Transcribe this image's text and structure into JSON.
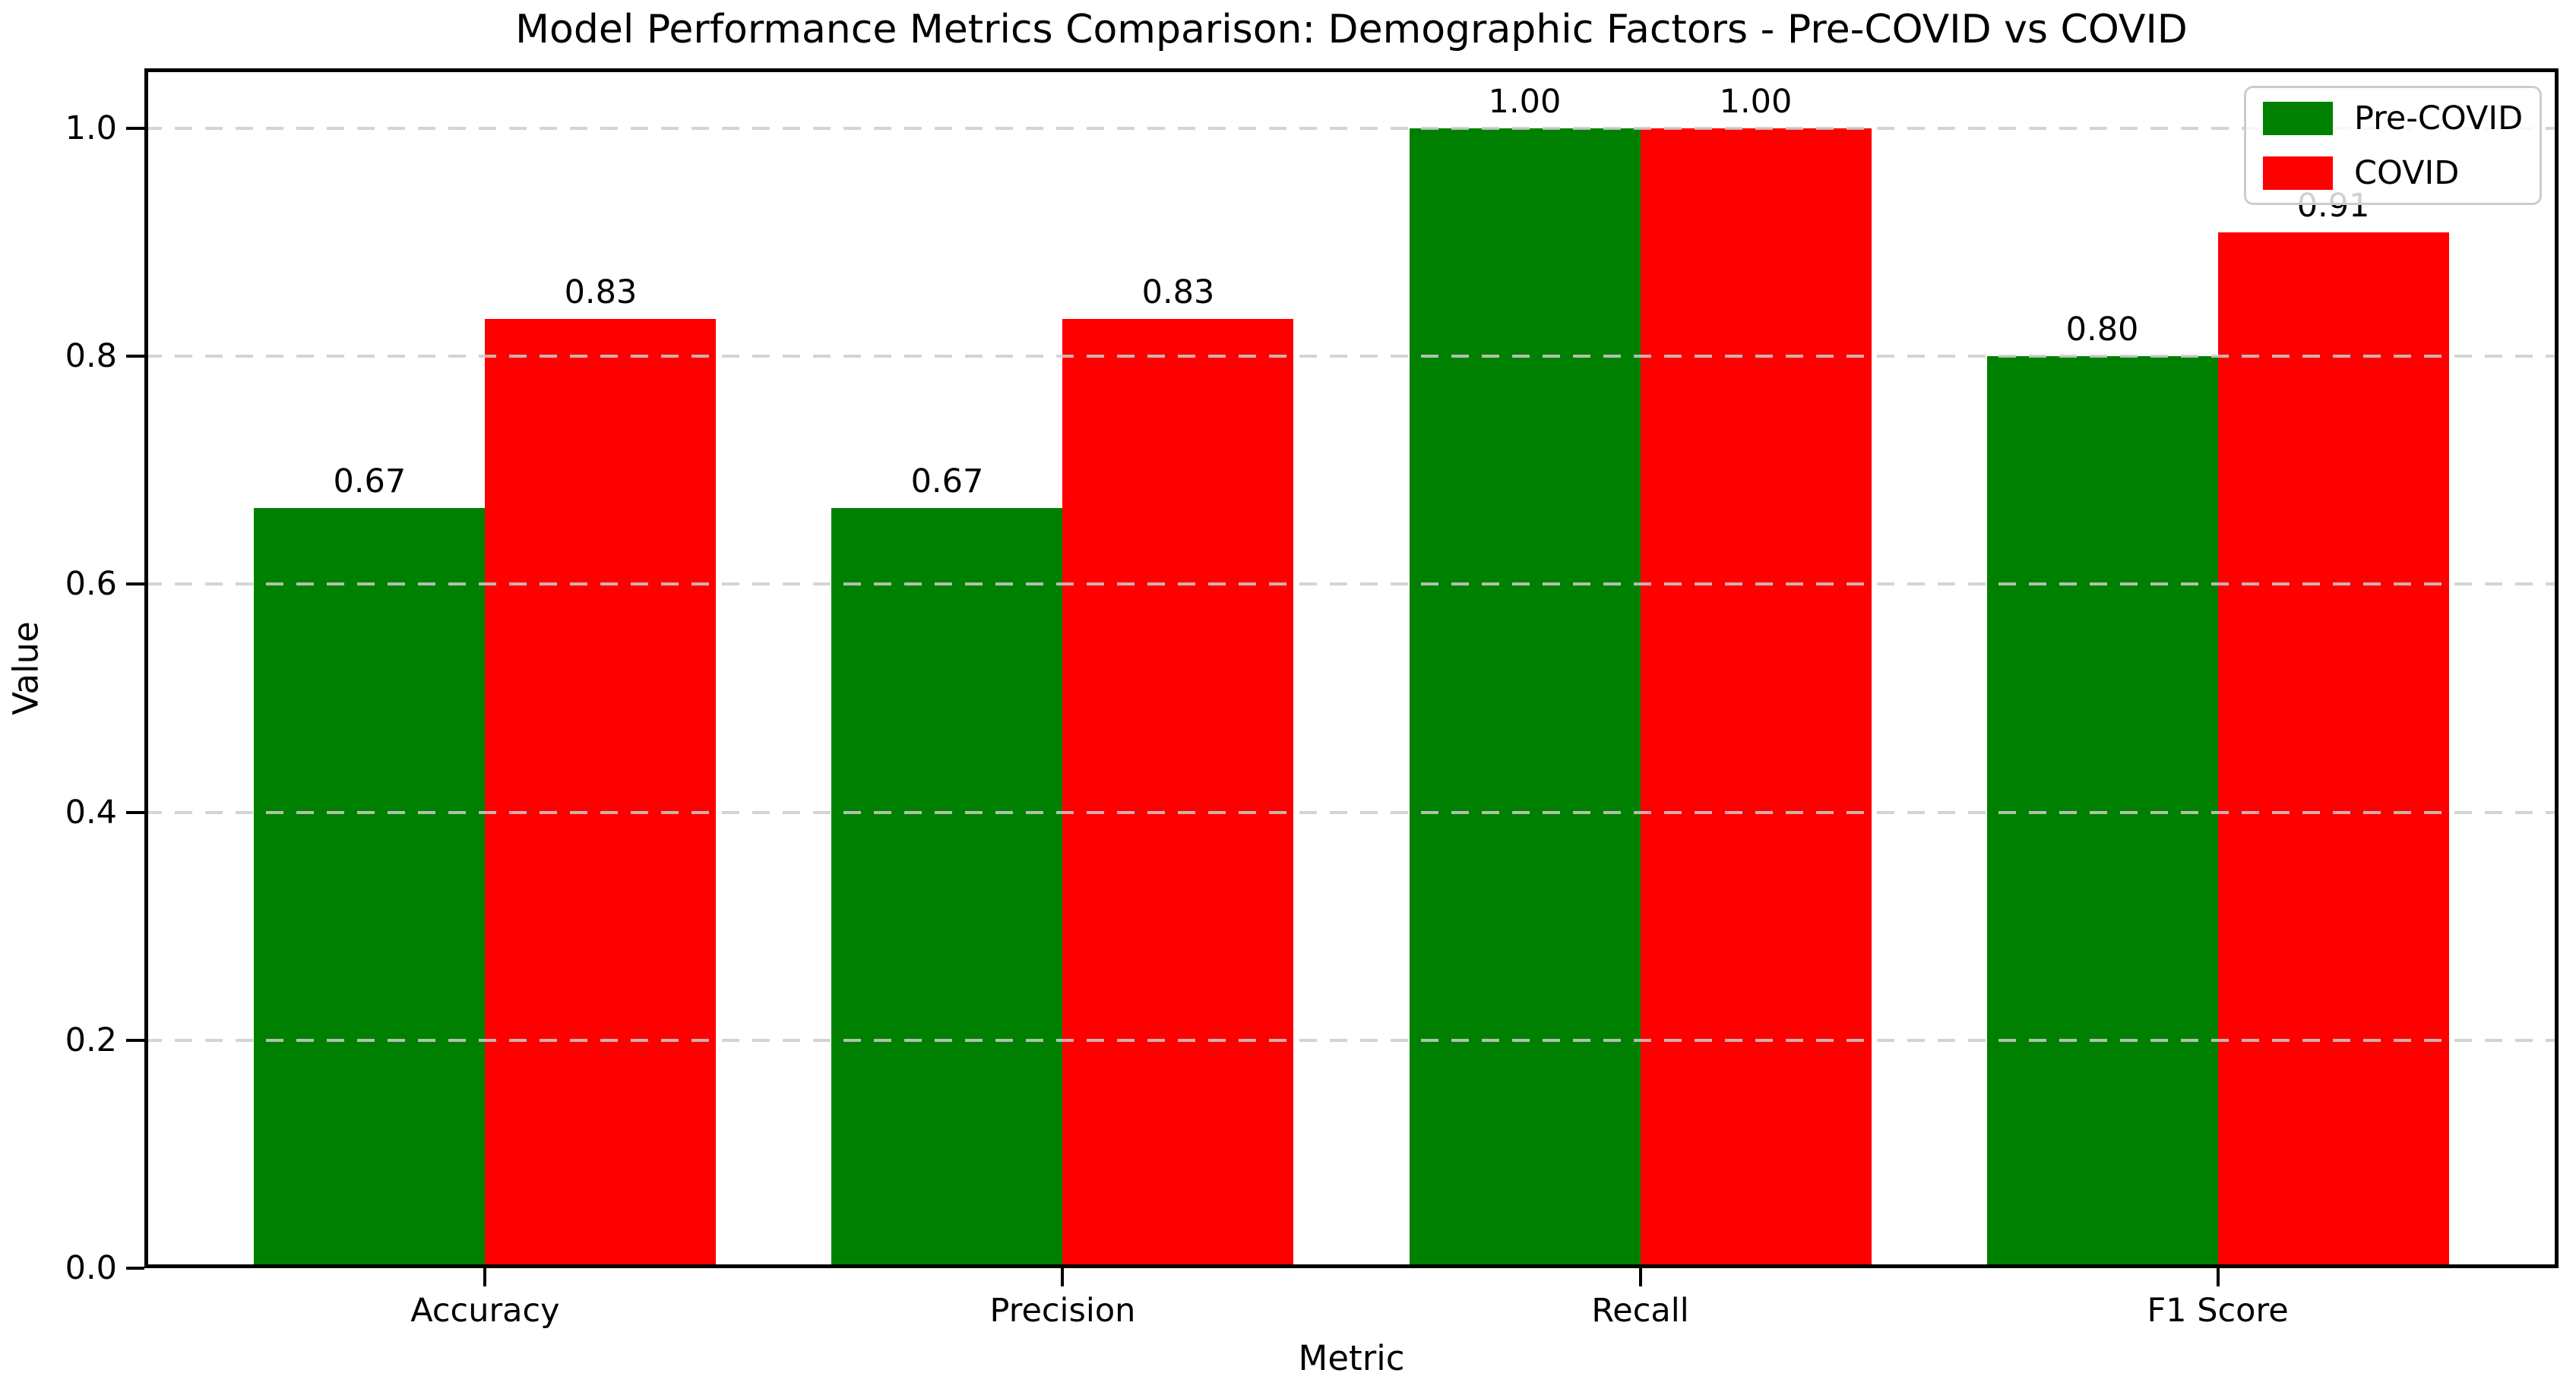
{
  "chart_data": {
    "type": "bar",
    "title": "Model Performance Metrics Comparison: Demographic Factors - Pre-COVID vs COVID",
    "xlabel": "Metric",
    "ylabel": "Value",
    "categories": [
      "Accuracy",
      "Precision",
      "Recall",
      "F1 Score"
    ],
    "series": [
      {
        "name": "Pre-COVID",
        "color": "#008000",
        "values": [
          0.667,
          0.667,
          1.0,
          0.8
        ],
        "value_labels": [
          "0.67",
          "0.67",
          "1.00",
          "0.80"
        ]
      },
      {
        "name": "COVID",
        "color": "#ff0000",
        "values": [
          0.833,
          0.833,
          1.0,
          0.909
        ],
        "value_labels": [
          "0.83",
          "0.83",
          "1.00",
          "0.91"
        ]
      }
    ],
    "y_ticks": [
      0.0,
      0.2,
      0.4,
      0.6,
      0.8,
      1.0
    ],
    "y_tick_labels": [
      "0.0",
      "0.2",
      "0.4",
      "0.6",
      "0.8",
      "1.0"
    ],
    "ylim": [
      0,
      1.0526
    ],
    "bar_width_data_units": 0.4,
    "grid": "horizontal dashed, drawn over bars",
    "legend_position": "upper right",
    "colors": {
      "background": "#ffffff",
      "axes": "#000000",
      "gridline": "#cdcdcd",
      "legend_border": "#cccccc"
    }
  }
}
